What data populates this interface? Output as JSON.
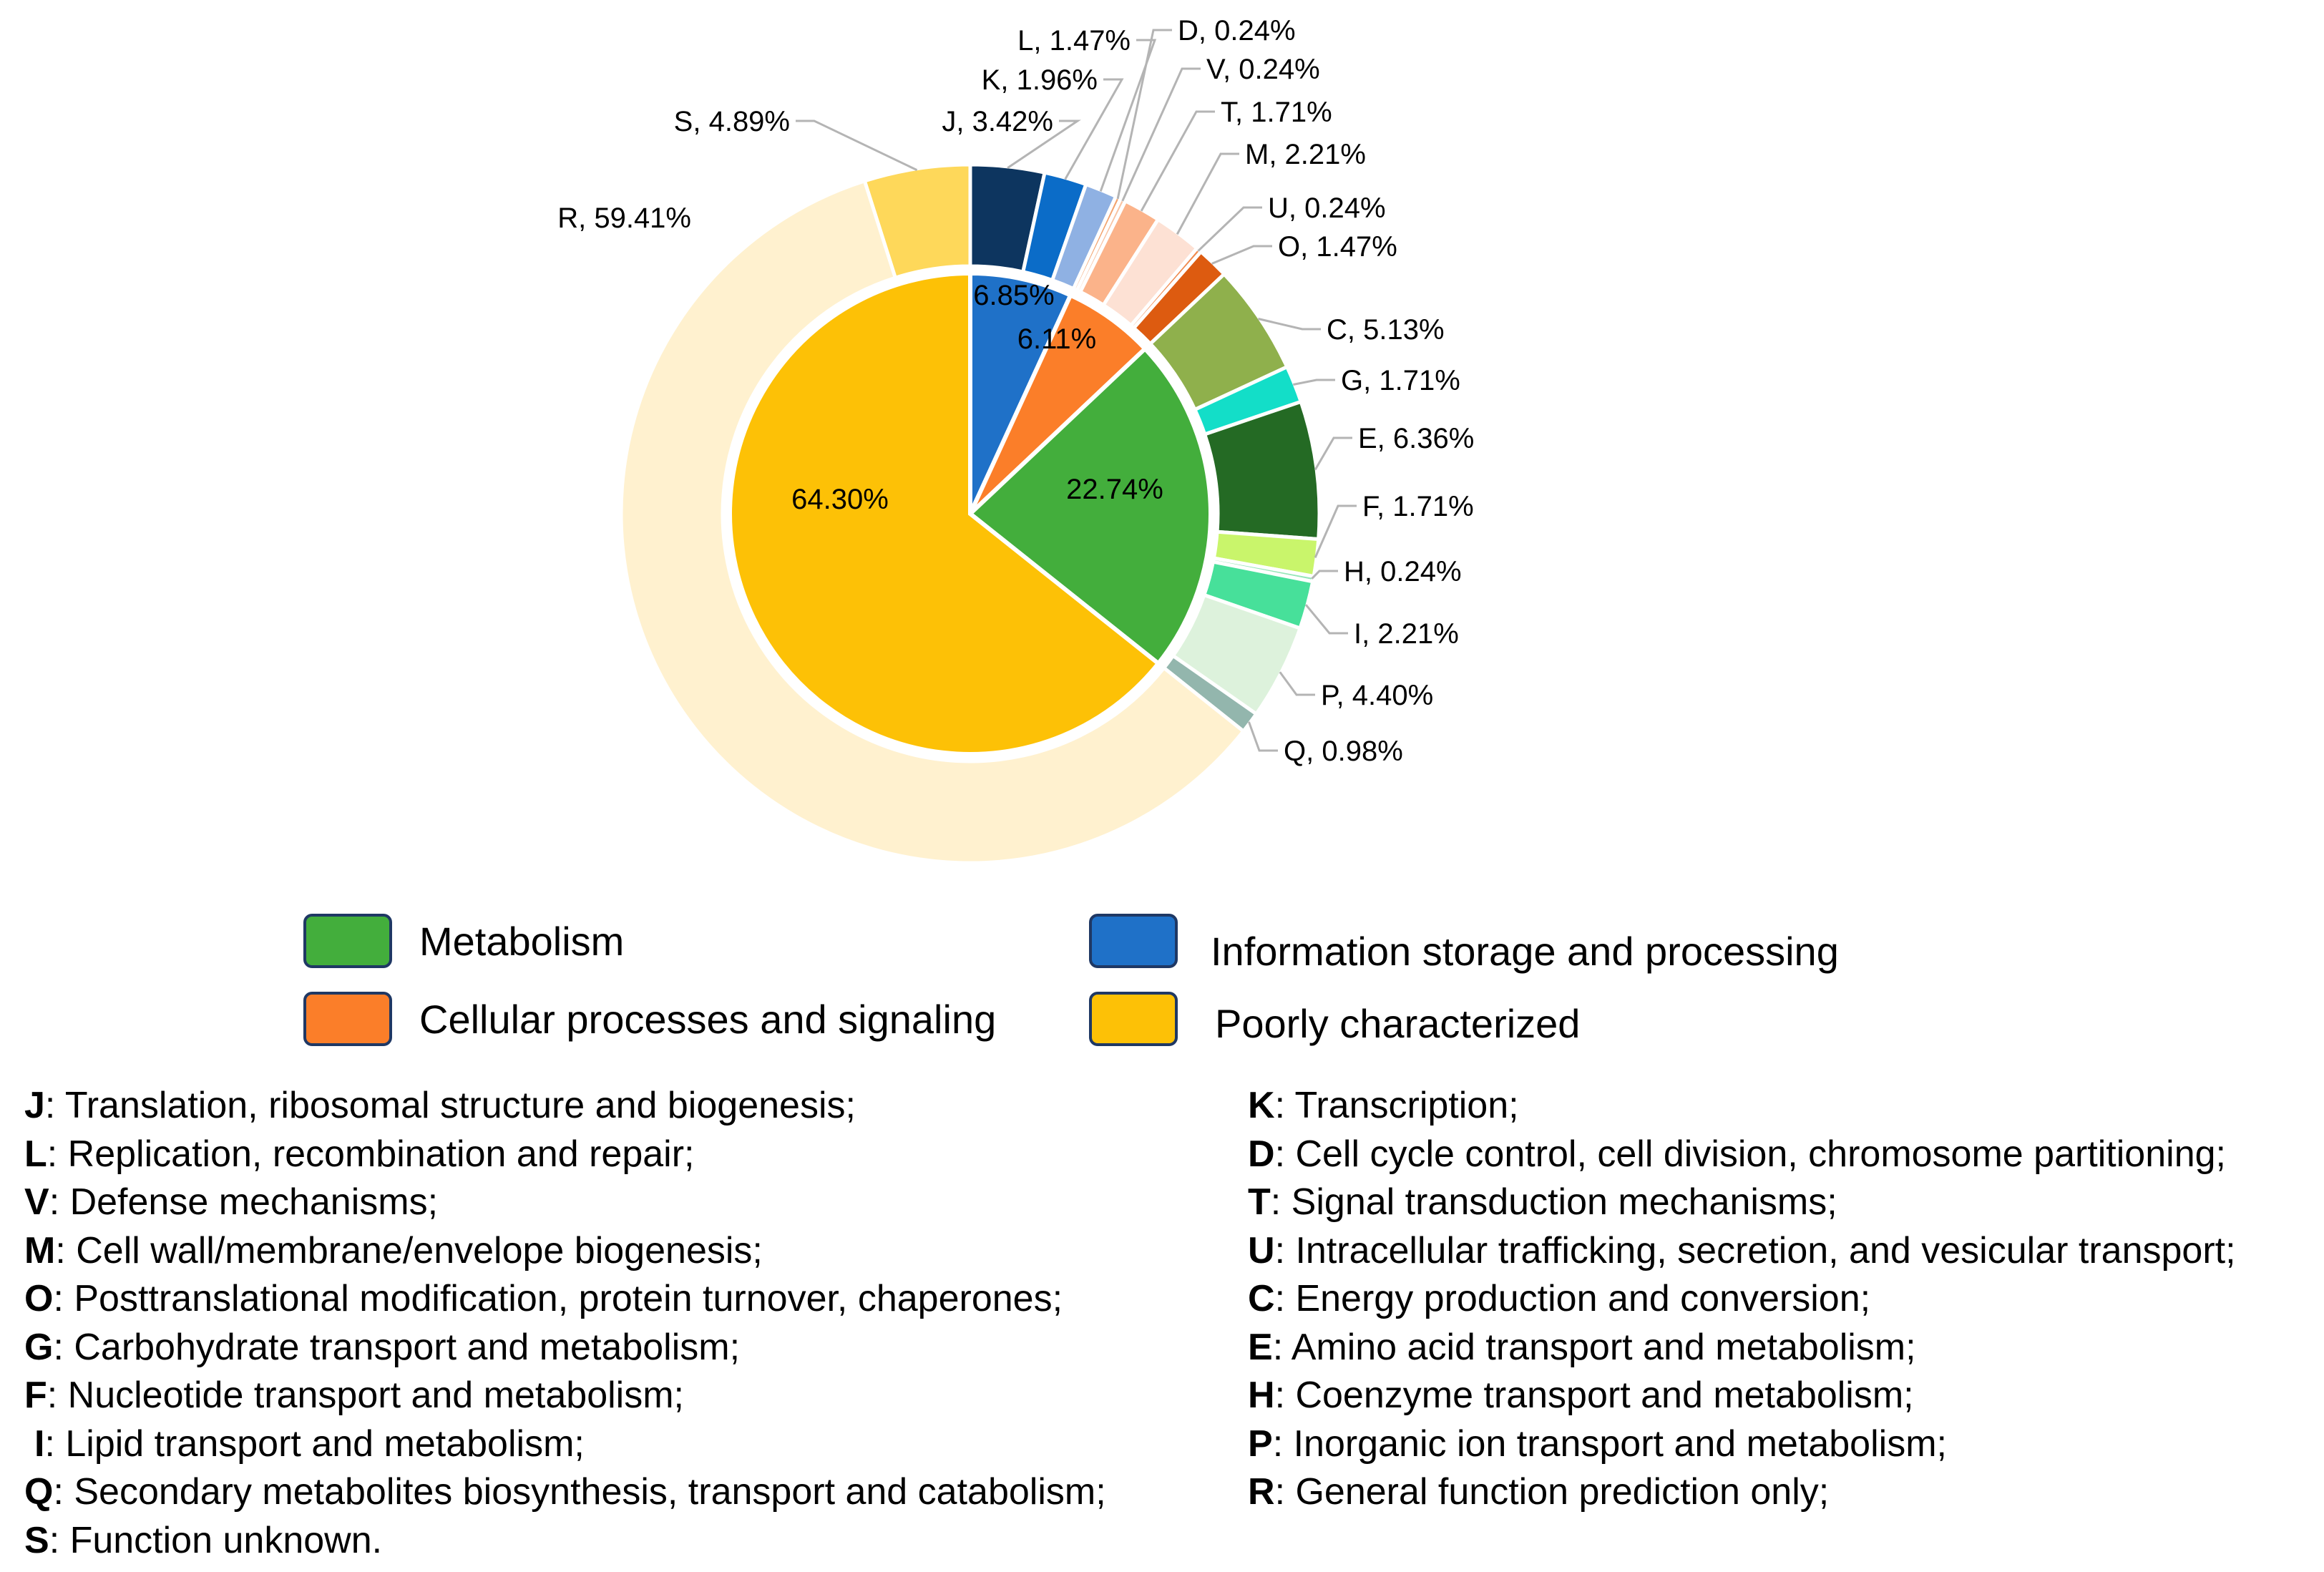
{
  "chart_data": {
    "type": "pie",
    "inner": [
      {
        "name": "Information storage and processing",
        "value": 6.85,
        "label": "6.85%",
        "color": "#1f71c8"
      },
      {
        "name": "Cellular processes and signaling",
        "value": 6.11,
        "label": "6.11%",
        "color": "#fb7e29"
      },
      {
        "name": "Metabolism",
        "value": 22.74,
        "label": "22.74%",
        "color": "#43ae3c"
      },
      {
        "name": "Poorly characterized",
        "value": 64.3,
        "label": "64.30%",
        "color": "#fdc106"
      }
    ],
    "outer": [
      {
        "code": "J",
        "value": 3.42,
        "label": "J, 3.42%",
        "color": "#0d355f"
      },
      {
        "code": "K",
        "value": 1.96,
        "label": "K, 1.96%",
        "color": "#0b6cc8"
      },
      {
        "code": "L",
        "value": 1.47,
        "label": "L, 1.47%",
        "color": "#8fb1e3"
      },
      {
        "code": "D",
        "value": 0.24,
        "label": "D, 0.24%",
        "color": "#f2a36e"
      },
      {
        "code": "V",
        "value": 0.24,
        "label": "V, 0.24%",
        "color": "#f7c3a3"
      },
      {
        "code": "T",
        "value": 1.71,
        "label": "T, 1.71%",
        "color": "#fbb38a"
      },
      {
        "code": "M",
        "value": 2.21,
        "label": "M, 2.21%",
        "color": "#fde1d4"
      },
      {
        "code": "U",
        "value": 0.24,
        "label": "U, 0.24%",
        "color": "#f08a4e"
      },
      {
        "code": "O",
        "value": 1.47,
        "label": "O, 1.47%",
        "color": "#dd5b10"
      },
      {
        "code": "C",
        "value": 5.13,
        "label": "C, 5.13%",
        "color": "#8fb04c"
      },
      {
        "code": "G",
        "value": 1.71,
        "label": "G, 1.71%",
        "color": "#13dec8"
      },
      {
        "code": "E",
        "value": 6.36,
        "label": "E, 6.36%",
        "color": "#246a24"
      },
      {
        "code": "F",
        "value": 1.71,
        "label": "F, 1.71%",
        "color": "#c9f56b"
      },
      {
        "code": "H",
        "value": 0.24,
        "label": "H, 0.24%",
        "color": "#95e6b7"
      },
      {
        "code": "I",
        "value": 2.21,
        "label": "I, 2.21%",
        "color": "#47e09a"
      },
      {
        "code": "P",
        "value": 4.4,
        "label": "P, 4.40%",
        "color": "#ddf2dc"
      },
      {
        "code": "Q",
        "value": 0.98,
        "label": "Q, 0.98%",
        "color": "#93b6ad"
      },
      {
        "code": "R",
        "value": 59.41,
        "label": "R, 59.41%",
        "color": "#fff1cf"
      },
      {
        "code": "S",
        "value": 4.89,
        "label": "S, 4.89%",
        "color": "#fed85a"
      }
    ]
  },
  "legend": [
    {
      "label": "Metabolism",
      "color": "#43ae3c"
    },
    {
      "label": "Cellular processes and signaling",
      "color": "#fb7e29"
    },
    {
      "label": "Information storage and processing",
      "color": "#1f71c8"
    },
    {
      "label": "Poorly characterized",
      "color": "#fdc106"
    }
  ],
  "descriptions": {
    "left": [
      {
        "code": "J",
        "text": ": Translation, ribosomal structure and biogenesis;"
      },
      {
        "code": "L",
        "text": ": Replication, recombination and repair;"
      },
      {
        "code": "V",
        "text": ": Defense mechanisms;"
      },
      {
        "code": "M",
        "text": ": Cell wall/membrane/envelope biogenesis;"
      },
      {
        "code": "O",
        "text": ": Posttranslational modification, protein turnover, chaperones;"
      },
      {
        "code": "G",
        "text": ": Carbohydrate transport and metabolism;"
      },
      {
        "code": "F",
        "text": ": Nucleotide transport and metabolism;"
      },
      {
        "code": "I",
        "text": ":  Lipid transport and metabolism;"
      },
      {
        "code": "Q",
        "text": ": Secondary metabolites biosynthesis, transport and catabolism;"
      },
      {
        "code": "S",
        "text": ": Function unknown."
      }
    ],
    "right": [
      {
        "code": "K",
        "text": ": Transcription;"
      },
      {
        "code": "D",
        "text": ": Cell cycle control, cell division, chromosome partitioning;"
      },
      {
        "code": "T",
        "text": ": Signal transduction mechanisms;"
      },
      {
        "code": "U",
        "text": ": Intracellular trafficking, secretion, and vesicular transport;"
      },
      {
        "code": "C",
        "text": ": Energy production and conversion;"
      },
      {
        "code": "E",
        "text": ": Amino acid transport and metabolism;"
      },
      {
        "code": "H",
        "text": ": Coenzyme transport and metabolism;"
      },
      {
        "code": "P",
        "text": ": Inorganic ion transport and metabolism;"
      },
      {
        "code": "R",
        "text": ": General function prediction only;"
      }
    ]
  }
}
